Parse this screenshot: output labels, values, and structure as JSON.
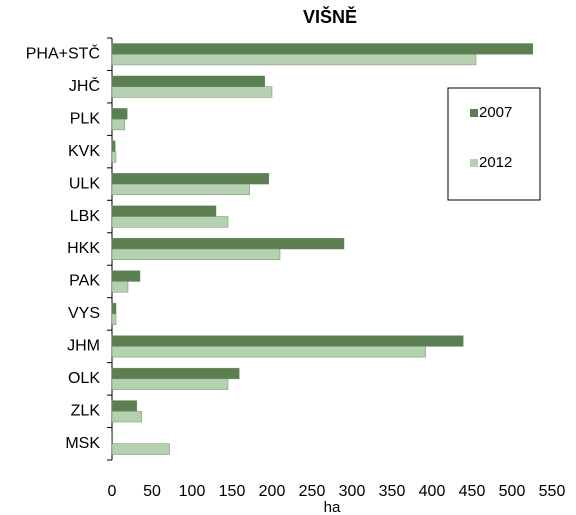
{
  "chart_data": {
    "type": "hbar",
    "title": "VIŠNĚ",
    "xlabel": "ha",
    "categories": [
      "PHA+STČ",
      "JHČ",
      "PLK",
      "KVK",
      "ULK",
      "LBK",
      "HKK",
      "PAK",
      "VYS",
      "JHM",
      "OLK",
      "ZLK",
      "MSK"
    ],
    "series": [
      {
        "name": "2007",
        "color": "#5b7f53",
        "values": [
          526,
          191,
          19,
          4,
          196,
          130,
          290,
          35,
          5,
          439,
          159,
          31,
          1
        ]
      },
      {
        "name": "2012",
        "color": "#b6d1b1",
        "values": [
          455,
          200,
          16,
          5,
          172,
          145,
          210,
          20,
          5,
          392,
          145,
          37,
          72
        ]
      }
    ],
    "xlim": [
      0,
      550
    ],
    "xticks": [
      0,
      50,
      100,
      150,
      200,
      250,
      300,
      350,
      400,
      450,
      500,
      550
    ],
    "legend": "upper right"
  }
}
